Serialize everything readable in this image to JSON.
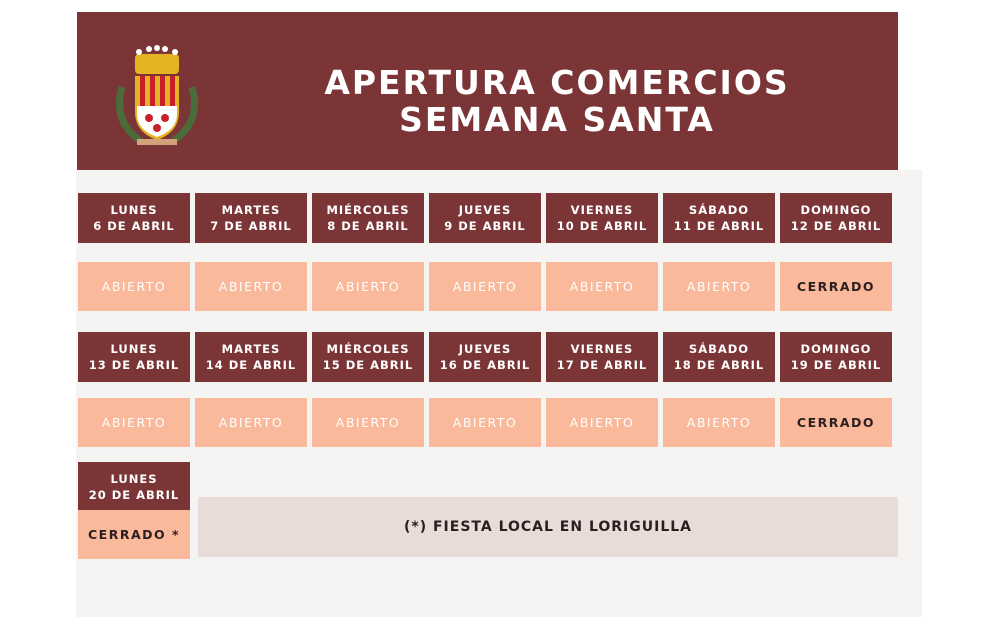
{
  "header": {
    "title": [
      "APERTURA COMERCIOS",
      "SEMANA SANTA"
    ]
  },
  "weeks": [
    {
      "days": [
        {
          "day": "LUNES",
          "date": "6 DE ABRIL",
          "status": "ABIERTO",
          "status_color": "#ffffff"
        },
        {
          "day": "MARTES",
          "date": "7 DE ABRIL",
          "status": "ABIERTO",
          "status_color": "#ffffff"
        },
        {
          "day": "MIÉRCOLES",
          "date": "8 DE ABRIL",
          "status": "ABIERTO",
          "status_color": "#ffffff"
        },
        {
          "day": "JUEVES",
          "date": "9 DE ABRIL",
          "status": "ABIERTO",
          "status_color": "#ffffff"
        },
        {
          "day": "VIERNES",
          "date": "10 DE ABRIL",
          "status": "ABIERTO",
          "status_color": "#ffffff"
        },
        {
          "day": "SÁBADO",
          "date": "11 DE ABRIL",
          "status": "ABIERTO",
          "status_color": "#ffffff"
        },
        {
          "day": "DOMINGO",
          "date": "12 DE ABRIL",
          "status": "CERRADO",
          "status_color": "#2a1f1f"
        }
      ]
    },
    {
      "days": [
        {
          "day": "LUNES",
          "date": "13 DE ABRIL",
          "status": "ABIERTO",
          "status_color": "#ffffff"
        },
        {
          "day": "MARTES",
          "date": "14 DE ABRIL",
          "status": "ABIERTO",
          "status_color": "#ffffff"
        },
        {
          "day": "MIÉRCOLES",
          "date": "15 DE ABRIL",
          "status": "ABIERTO",
          "status_color": "#ffffff"
        },
        {
          "day": "JUEVES",
          "date": "16 DE ABRIL",
          "status": "ABIERTO",
          "status_color": "#ffffff"
        },
        {
          "day": "VIERNES",
          "date": "17 DE ABRIL",
          "status": "ABIERTO",
          "status_color": "#ffffff"
        },
        {
          "day": "SÁBADO",
          "date": "18 DE ABRIL",
          "status": "ABIERTO",
          "status_color": "#ffffff"
        },
        {
          "day": "DOMINGO",
          "date": "19 DE ABRIL",
          "status": "CERRADO",
          "status_color": "#2a1f1f"
        }
      ]
    },
    {
      "days": [
        {
          "day": "LUNES",
          "date": "20 DE ABRIL",
          "status": "CERRADO *",
          "status_color": "#2a1f1f"
        }
      ]
    }
  ],
  "note": "(*) FIESTA LOCAL EN LORIGUILLA"
}
